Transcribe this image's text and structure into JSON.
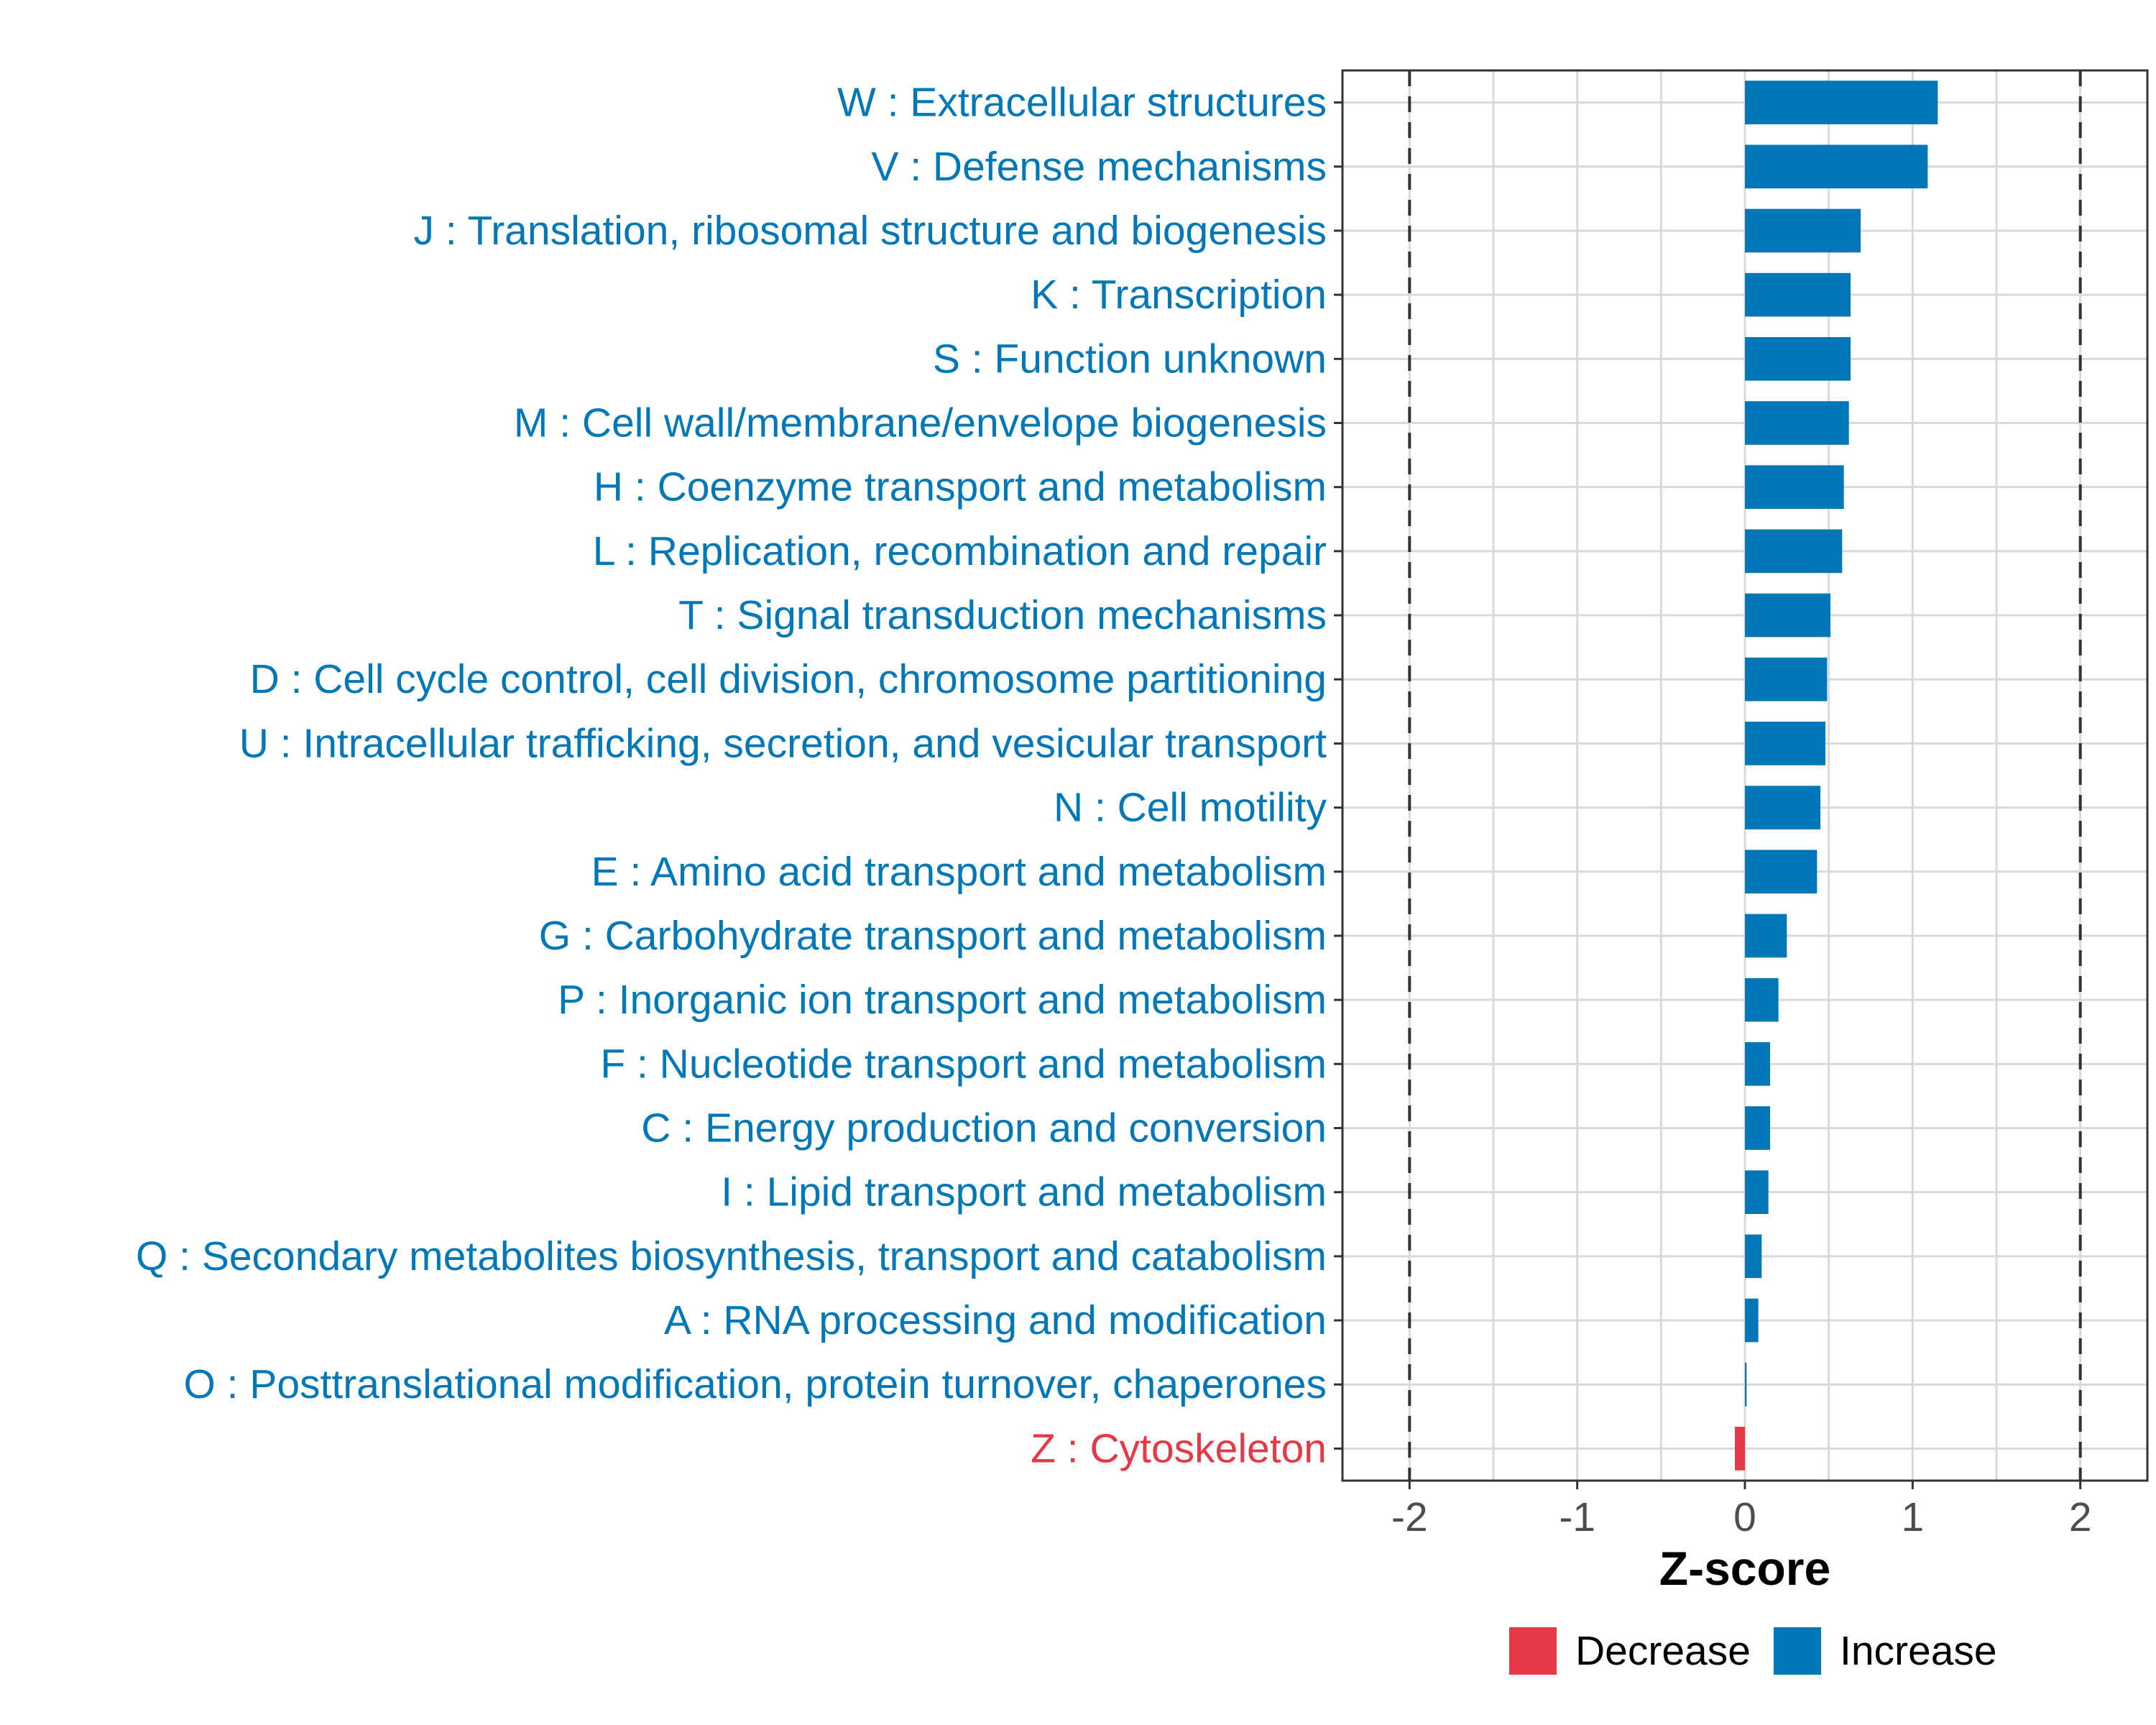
{
  "chart_data": {
    "type": "bar",
    "orientation": "horizontal",
    "xlabel": "Z-score",
    "xlim": [
      -2.4,
      2.4
    ],
    "xticks": [
      "-2",
      "-1",
      "0",
      "1",
      "2"
    ],
    "xtick_values": [
      -2,
      -1,
      0,
      1,
      2
    ],
    "threshold_lines": [
      -2,
      2
    ],
    "colors": {
      "Decrease": "#e63946",
      "Increase": "#0077b6"
    },
    "legend": [
      "Decrease",
      "Increase"
    ],
    "legend_position": "bottom",
    "categories": [
      "W : Extracellular structures",
      "V : Defense mechanisms",
      "J : Translation, ribosomal structure and biogenesis",
      "K : Transcription",
      "S : Function unknown",
      "M : Cell wall/membrane/envelope biogenesis",
      "H : Coenzyme transport and metabolism",
      "L : Replication, recombination and repair",
      "T : Signal transduction mechanisms",
      "D : Cell cycle control, cell division, chromosome partitioning",
      "U : Intracellular trafficking, secretion, and vesicular transport",
      "N : Cell motility",
      "E : Amino acid transport and metabolism",
      "G : Carbohydrate transport and metabolism",
      "P : Inorganic ion transport and metabolism",
      "F : Nucleotide transport and metabolism",
      "C : Energy production and conversion",
      "I : Lipid transport and metabolism",
      "Q : Secondary metabolites biosynthesis, transport and catabolism",
      "A : RNA processing and modification",
      "O : Posttranslational modification, protein turnover, chaperones",
      "Z : Cytoskeleton"
    ],
    "values": [
      1.15,
      1.09,
      0.69,
      0.63,
      0.63,
      0.62,
      0.59,
      0.58,
      0.51,
      0.49,
      0.48,
      0.45,
      0.43,
      0.25,
      0.2,
      0.15,
      0.15,
      0.14,
      0.1,
      0.08,
      0.01,
      -0.06
    ],
    "direction": [
      "Increase",
      "Increase",
      "Increase",
      "Increase",
      "Increase",
      "Increase",
      "Increase",
      "Increase",
      "Increase",
      "Increase",
      "Increase",
      "Increase",
      "Increase",
      "Increase",
      "Increase",
      "Increase",
      "Increase",
      "Increase",
      "Increase",
      "Increase",
      "Increase",
      "Decrease"
    ]
  }
}
